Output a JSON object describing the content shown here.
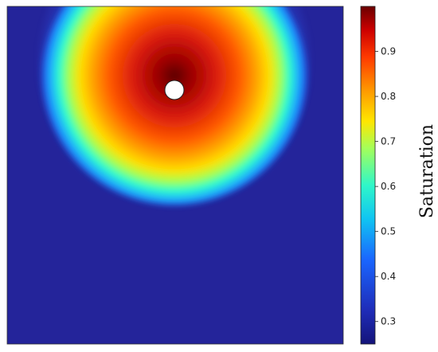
{
  "chart_data": {
    "type": "heatmap",
    "title": "",
    "xlabel": "",
    "ylabel": "",
    "colormap": "jet",
    "colorbar": {
      "label": "Saturation",
      "range": [
        0.25,
        1.0
      ],
      "ticks": [
        "0.3",
        "0.4",
        "0.5",
        "0.6",
        "0.7",
        "0.8",
        "0.9"
      ],
      "tick_values": [
        0.3,
        0.4,
        0.5,
        0.6,
        0.7,
        0.8,
        0.9
      ]
    },
    "field": {
      "background_value": 0.27,
      "peak_value": 1.0,
      "source_marker": "white circle (well / injection point)"
    }
  }
}
